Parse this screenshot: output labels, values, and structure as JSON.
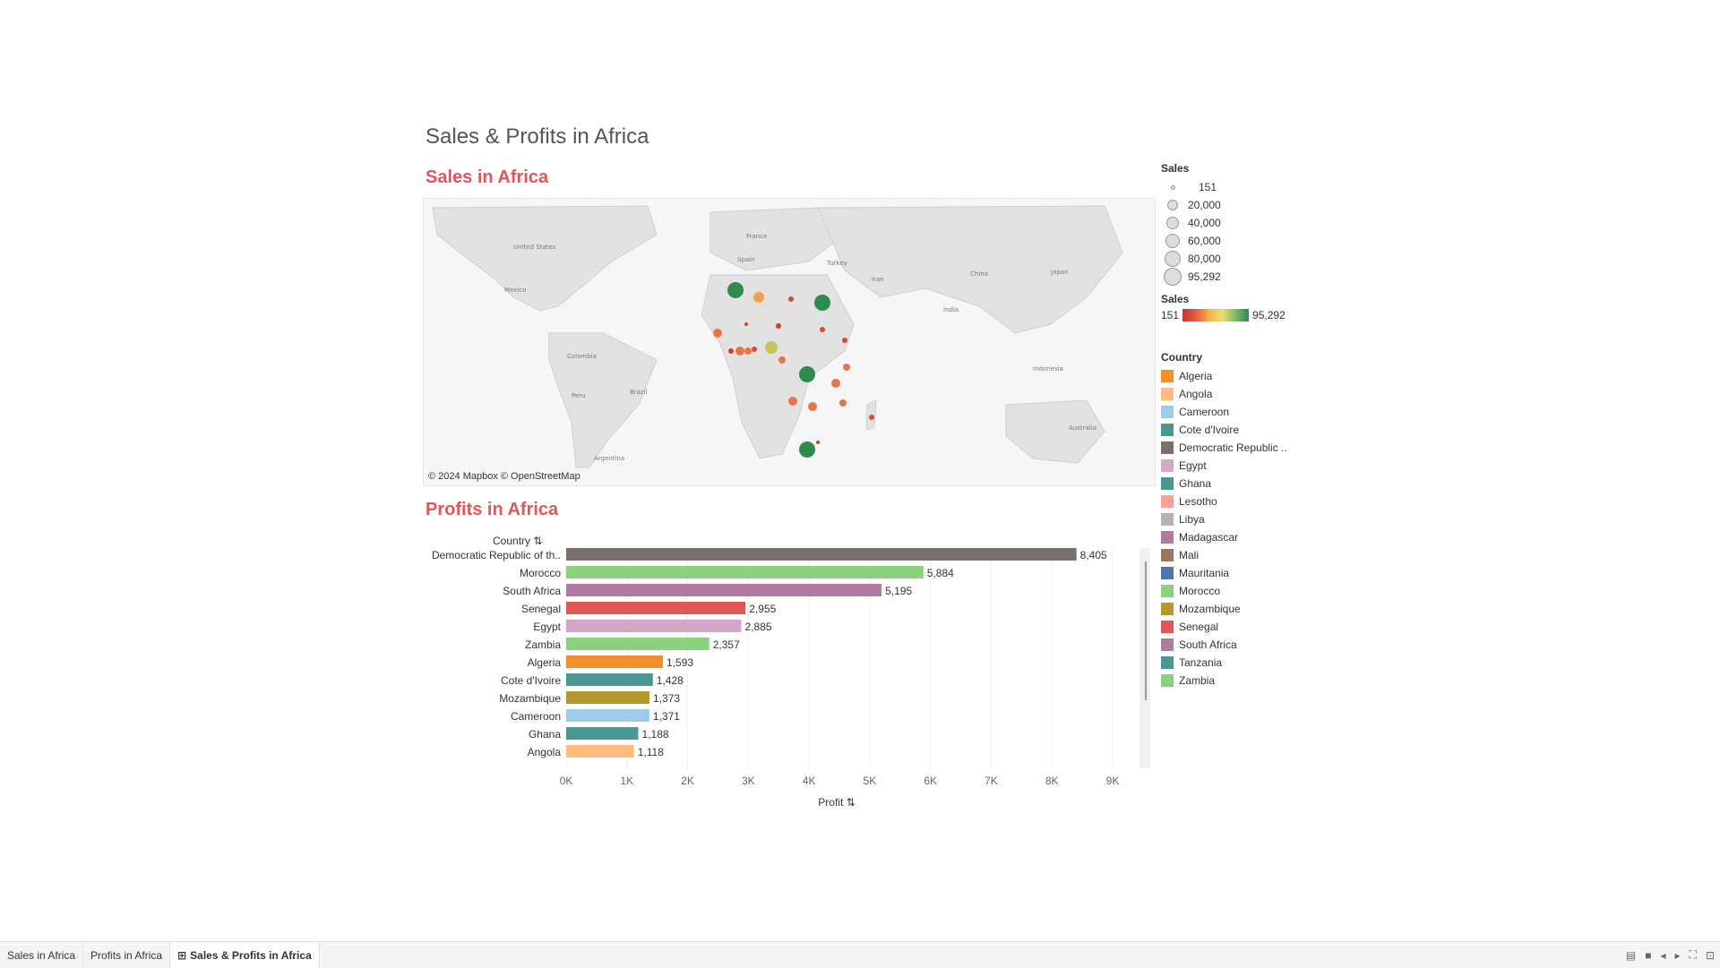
{
  "dashboard": {
    "title": "Sales & Profits in Africa"
  },
  "map": {
    "title": "Sales in Africa",
    "attribution": "© 2024 Mapbox © OpenStreetMap",
    "labels": [
      "United States",
      "Mexico",
      "Colombia",
      "Peru",
      "Brazil",
      "Argentina",
      "France",
      "Spain",
      "Turkey",
      "Iran",
      "China",
      "India",
      "Japan",
      "Indonesia",
      "Australia"
    ]
  },
  "legends": {
    "size_title": "Sales",
    "size_items": [
      "151",
      "20,000",
      "40,000",
      "60,000",
      "80,000",
      "95,292"
    ],
    "color_title": "Sales",
    "color_min": "151",
    "color_max": "95,292",
    "country_title": "Country",
    "countries": [
      {
        "name": "Algeria",
        "color": "#f28e2b"
      },
      {
        "name": "Angola",
        "color": "#ffbe7d"
      },
      {
        "name": "Cameroon",
        "color": "#a0cbe8"
      },
      {
        "name": "Cote d'Ivoire",
        "color": "#499894"
      },
      {
        "name": "Democratic Republic ..",
        "color": "#79706e"
      },
      {
        "name": "Egypt",
        "color": "#d4a6c8"
      },
      {
        "name": "Ghana",
        "color": "#499894"
      },
      {
        "name": "Lesotho",
        "color": "#ff9d9a"
      },
      {
        "name": "Libya",
        "color": "#bab0ac"
      },
      {
        "name": "Madagascar",
        "color": "#b07aa1"
      },
      {
        "name": "Mali",
        "color": "#9d7660"
      },
      {
        "name": "Mauritania",
        "color": "#4e79a7"
      },
      {
        "name": "Morocco",
        "color": "#8cd17d"
      },
      {
        "name": "Mozambique",
        "color": "#b6992d"
      },
      {
        "name": "Senegal",
        "color": "#e15759"
      },
      {
        "name": "South Africa",
        "color": "#b07aa1"
      },
      {
        "name": "Tanzania",
        "color": "#499894"
      },
      {
        "name": "Zambia",
        "color": "#8cd17d"
      }
    ]
  },
  "bar_sheet": {
    "title": "Profits in Africa",
    "y_header": "Country",
    "x_header": "Profit"
  },
  "chart_data": {
    "type": "bar",
    "orientation": "horizontal",
    "categories": [
      "Democratic Republic of th..",
      "Morocco",
      "South Africa",
      "Senegal",
      "Egypt",
      "Zambia",
      "Algeria",
      "Cote d'Ivoire",
      "Mozambique",
      "Cameroon",
      "Ghana",
      "Angola"
    ],
    "values": [
      8405,
      5884,
      5195,
      2955,
      2885,
      2357,
      1593,
      1428,
      1373,
      1371,
      1188,
      1118
    ],
    "value_labels": [
      "8,405",
      "5,884",
      "5,195",
      "2,955",
      "2,885",
      "2,357",
      "1,593",
      "1,428",
      "1,373",
      "1,371",
      "1,188",
      "1,118"
    ],
    "colors": [
      "#79706e",
      "#8cd17d",
      "#b07aa1",
      "#e15759",
      "#d4a6c8",
      "#8cd17d",
      "#f28e2b",
      "#499894",
      "#b6992d",
      "#a0cbe8",
      "#499894",
      "#ffbe7d"
    ],
    "xticks": [
      "0K",
      "1K",
      "2K",
      "3K",
      "4K",
      "5K",
      "6K",
      "7K",
      "8K",
      "9K"
    ],
    "xlim": [
      0,
      9000
    ],
    "xlabel": "Profit",
    "ylabel": "Country",
    "grid": true
  },
  "tabs": [
    {
      "label": "Sales in Africa",
      "active": false
    },
    {
      "label": "Profits in Africa",
      "active": false
    },
    {
      "label": "Sales & Profits in Africa",
      "active": true
    }
  ]
}
